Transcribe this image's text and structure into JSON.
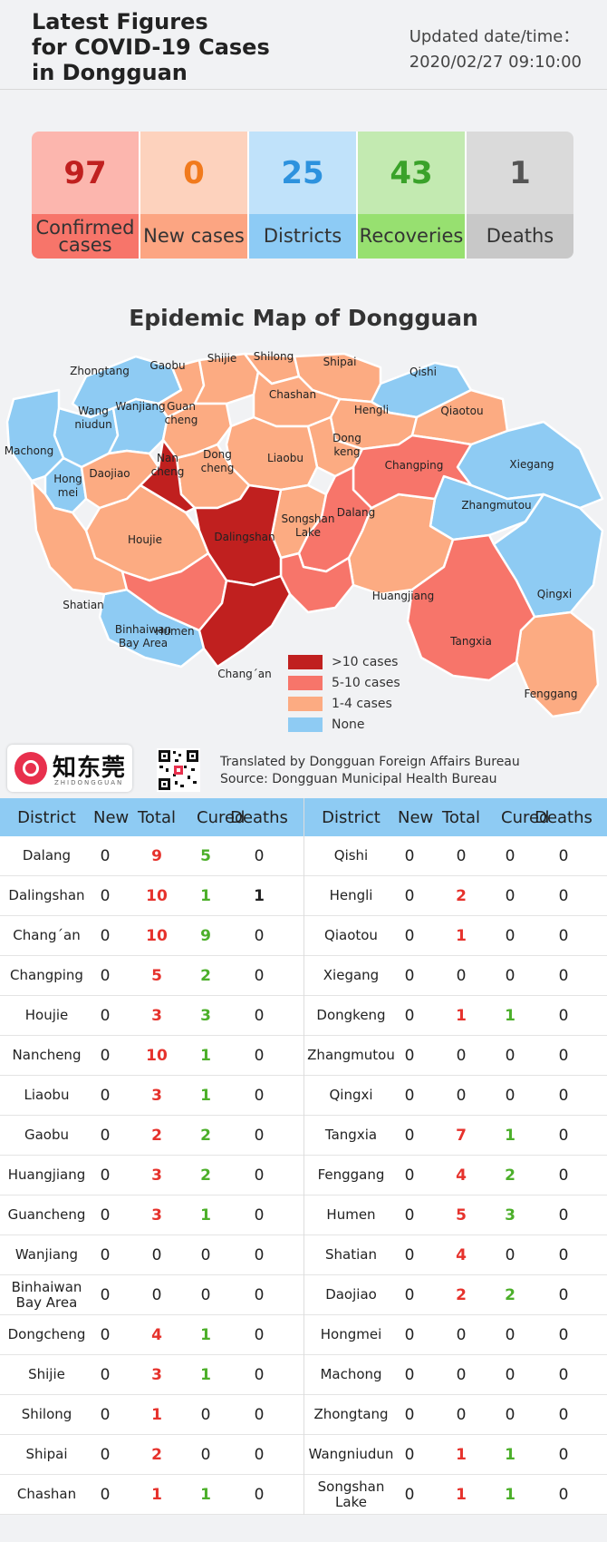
{
  "header": {
    "title_lines": [
      "Latest Figures",
      "for COVID-19 Cases",
      "in Dongguan"
    ],
    "updated_label": "Updated date/time：",
    "updated_value": "2020/02/27 09:10:00"
  },
  "stats": [
    {
      "value": "97",
      "label": "Confirmed cases",
      "num_bg": "#fcb6ae",
      "lbl_bg": "#f7756a",
      "color": "#c0201f"
    },
    {
      "value": "0",
      "label": "New cases",
      "num_bg": "#fdd2bd",
      "lbl_bg": "#fca582",
      "color": "#f17a1d"
    },
    {
      "value": "25",
      "label": "Districts",
      "num_bg": "#c0e2fa",
      "lbl_bg": "#8dcbf5",
      "color": "#2d92de"
    },
    {
      "value": "43",
      "label": "Recoveries",
      "num_bg": "#c3eab1",
      "lbl_bg": "#97e070",
      "color": "#3aa22a"
    },
    {
      "value": "1",
      "label": "Deaths",
      "num_bg": "#dadada",
      "lbl_bg": "#c8c8c8",
      "color": "#555555"
    }
  ],
  "map": {
    "title": "Epidemic Map of Dongguan",
    "legend": [
      {
        "label": ">10 cases",
        "color": "#c0201f"
      },
      {
        "label": "5-10 cases",
        "color": "#f7756a"
      },
      {
        "label": "1-4 cases",
        "color": "#fcab82"
      },
      {
        "label": "None",
        "color": "#8ecbf3"
      }
    ],
    "labels": [
      "Zhongtang",
      "Gaobu",
      "Shijie",
      "Shilong",
      "Shipai",
      "Qishi",
      "Wang niudun",
      "Wanjiang",
      "Guan cheng",
      "Chashan",
      "Hengli",
      "Qiaotou",
      "Machong",
      "Dong keng",
      "Liaobu",
      "Changping",
      "Xiegang",
      "Daojiao",
      "Nan cheng",
      "Dong cheng",
      "Hong mei",
      "Zhangmutou",
      "Dalang",
      "Houjie",
      "Dalingshan",
      "Songshan Lake",
      "Huangjiang",
      "Qingxi",
      "Shatian",
      "Humen",
      "Tangxia",
      "Binhaiwan Bay Area",
      "Chang´an",
      "Fenggang"
    ]
  },
  "credit": {
    "logo_text": "知东莞",
    "logo_sub": "ZHIDONGGUAN",
    "translated": "Translated by Dongguan Foreign Affairs Bureau",
    "source": "Source:   Dongguan Municipal Health Bureau"
  },
  "table": {
    "headers": [
      "District",
      "New",
      "Total",
      "Cured",
      "Deaths"
    ],
    "left": [
      {
        "district": "Dalang",
        "new": "0",
        "total": "9",
        "cured": "5",
        "deaths": "0"
      },
      {
        "district": "Dalingshan",
        "new": "0",
        "total": "10",
        "cured": "1",
        "deaths": "1"
      },
      {
        "district": "Chang´an",
        "new": "0",
        "total": "10",
        "cured": "9",
        "deaths": "0"
      },
      {
        "district": "Changping",
        "new": "0",
        "total": "5",
        "cured": "2",
        "deaths": "0"
      },
      {
        "district": "Houjie",
        "new": "0",
        "total": "3",
        "cured": "3",
        "deaths": "0"
      },
      {
        "district": "Nancheng",
        "new": "0",
        "total": "10",
        "cured": "1",
        "deaths": "0"
      },
      {
        "district": "Liaobu",
        "new": "0",
        "total": "3",
        "cured": "1",
        "deaths": "0"
      },
      {
        "district": "Gaobu",
        "new": "0",
        "total": "2",
        "cured": "2",
        "deaths": "0"
      },
      {
        "district": "Huangjiang",
        "new": "0",
        "total": "3",
        "cured": "2",
        "deaths": "0"
      },
      {
        "district": "Guancheng",
        "new": "0",
        "total": "3",
        "cured": "1",
        "deaths": "0"
      },
      {
        "district": "Wanjiang",
        "new": "0",
        "total": "0",
        "cured": "0",
        "deaths": "0"
      },
      {
        "district": "Binhaiwan Bay Area",
        "new": "0",
        "total": "0",
        "cured": "0",
        "deaths": "0"
      },
      {
        "district": "Dongcheng",
        "new": "0",
        "total": "4",
        "cured": "1",
        "deaths": "0"
      },
      {
        "district": "Shijie",
        "new": "0",
        "total": "3",
        "cured": "1",
        "deaths": "0"
      },
      {
        "district": "Shilong",
        "new": "0",
        "total": "1",
        "cured": "0",
        "deaths": "0"
      },
      {
        "district": "Shipai",
        "new": "0",
        "total": "2",
        "cured": "0",
        "deaths": "0"
      },
      {
        "district": "Chashan",
        "new": "0",
        "total": "1",
        "cured": "1",
        "deaths": "0"
      }
    ],
    "right": [
      {
        "district": "Qishi",
        "new": "0",
        "total": "0",
        "cured": "0",
        "deaths": "0"
      },
      {
        "district": "Hengli",
        "new": "0",
        "total": "2",
        "cured": "0",
        "deaths": "0"
      },
      {
        "district": "Qiaotou",
        "new": "0",
        "total": "1",
        "cured": "0",
        "deaths": "0"
      },
      {
        "district": "Xiegang",
        "new": "0",
        "total": "0",
        "cured": "0",
        "deaths": "0"
      },
      {
        "district": "Dongkeng",
        "new": "0",
        "total": "1",
        "cured": "1",
        "deaths": "0"
      },
      {
        "district": "Zhangmutou",
        "new": "0",
        "total": "0",
        "cured": "0",
        "deaths": "0"
      },
      {
        "district": "Qingxi",
        "new": "0",
        "total": "0",
        "cured": "0",
        "deaths": "0"
      },
      {
        "district": "Tangxia",
        "new": "0",
        "total": "7",
        "cured": "1",
        "deaths": "0"
      },
      {
        "district": "Fenggang",
        "new": "0",
        "total": "4",
        "cured": "2",
        "deaths": "0"
      },
      {
        "district": "Humen",
        "new": "0",
        "total": "5",
        "cured": "3",
        "deaths": "0"
      },
      {
        "district": "Shatian",
        "new": "0",
        "total": "4",
        "cured": "0",
        "deaths": "0"
      },
      {
        "district": "Daojiao",
        "new": "0",
        "total": "2",
        "cured": "2",
        "deaths": "0"
      },
      {
        "district": "Hongmei",
        "new": "0",
        "total": "0",
        "cured": "0",
        "deaths": "0"
      },
      {
        "district": "Machong",
        "new": "0",
        "total": "0",
        "cured": "0",
        "deaths": "0"
      },
      {
        "district": "Zhongtang",
        "new": "0",
        "total": "0",
        "cured": "0",
        "deaths": "0"
      },
      {
        "district": "Wangniudun",
        "new": "0",
        "total": "1",
        "cured": "1",
        "deaths": "0"
      },
      {
        "district": "Songshan Lake",
        "new": "0",
        "total": "1",
        "cured": "1",
        "deaths": "0"
      }
    ]
  }
}
